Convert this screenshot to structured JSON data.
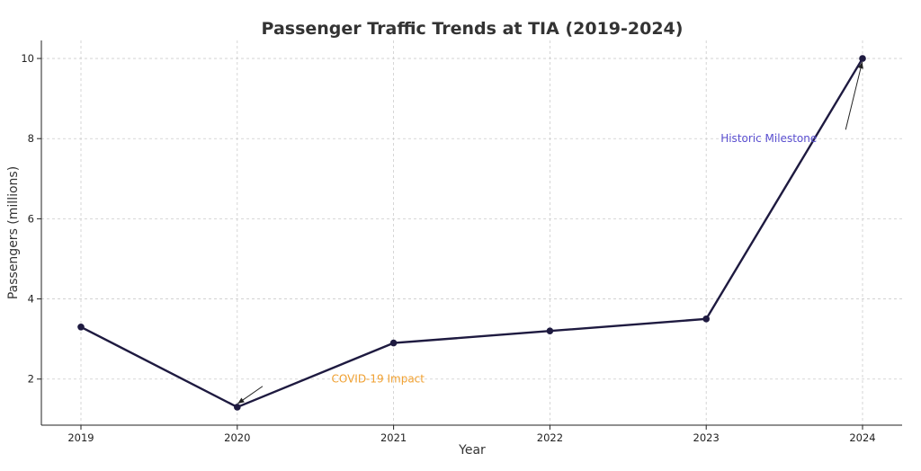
{
  "chart_data": {
    "type": "line",
    "title": "Passenger Traffic Trends at TIA (2019-2024)",
    "xlabel": "Year",
    "ylabel": "Passengers (millions)",
    "x": [
      "2019",
      "2020",
      "2021",
      "2022",
      "2023",
      "2024"
    ],
    "series": [
      {
        "name": "Passengers",
        "values": [
          3.3,
          1.3,
          2.9,
          3.2,
          3.5,
          10.0
        ],
        "color": "#1e1a40"
      }
    ],
    "yticks": [
      2,
      4,
      6,
      8,
      10
    ],
    "ylim": [
      0.85,
      10.45
    ],
    "grid": true,
    "annotations": [
      {
        "text": "COVID-19 Impact",
        "x": "2020",
        "y": 1.3,
        "text_x": 1.9,
        "text_y": 2.0,
        "color": "#f0a030"
      },
      {
        "text": "Historic Milestone",
        "x": "2024",
        "y": 10.0,
        "text_x": 4.4,
        "text_y": 8.0,
        "color": "#5a4fd0"
      }
    ],
    "ytick_labels": [
      "2",
      "4",
      "6",
      "8",
      "10"
    ]
  }
}
